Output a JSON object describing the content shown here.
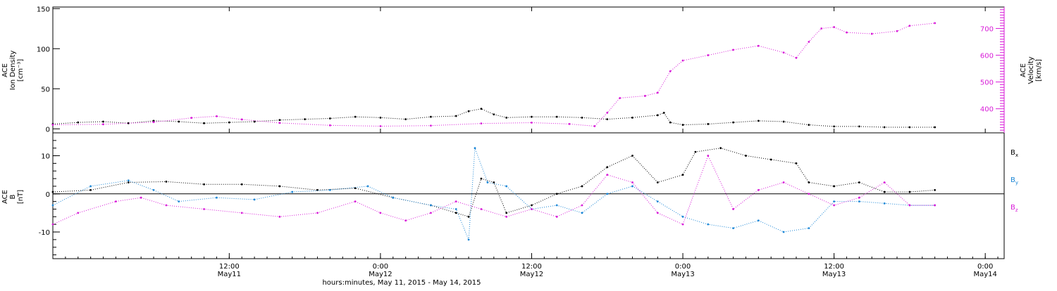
{
  "chart_data": [
    {
      "type": "scatter",
      "panel": "top",
      "xlabel": "hours:minutes, May 11, 2015 - May 14, 2015",
      "x_ticks": [
        {
          "time": "2015-05-11T12:00",
          "line1": "12:00",
          "line2": "May11"
        },
        {
          "time": "2015-05-12T00:00",
          "line1": "0:00",
          "line2": "May12"
        },
        {
          "time": "2015-05-12T12:00",
          "line1": "12:00",
          "line2": "May12"
        },
        {
          "time": "2015-05-13T00:00",
          "line1": "0:00",
          "line2": "May13"
        },
        {
          "time": "2015-05-13T12:00",
          "line1": "12:00",
          "line2": "May13"
        },
        {
          "time": "2015-05-14T00:00",
          "line1": "0:00",
          "line2": "May14"
        }
      ],
      "xlim": [
        "2015-05-10T22:00",
        "2015-05-14T01:30"
      ],
      "y_left": {
        "label_lines": [
          "ACE",
          "Ion Density",
          "[cm⁻³]"
        ],
        "ylim": [
          -5,
          152
        ],
        "ticks": [
          0,
          50,
          100,
          150
        ]
      },
      "y_right": {
        "label_lines": [
          "ACE",
          "Velocity",
          "[km/s]"
        ],
        "ylim": [
          310,
          780
        ],
        "ticks": [
          400,
          500,
          600,
          700
        ],
        "color": "#d81bd8"
      },
      "series": [
        {
          "color": "#000000",
          "axis": "left",
          "points": [
            [
              "2015-05-10T22:00",
              6
            ],
            [
              "2015-05-11T00:00",
              8
            ],
            [
              "2015-05-11T02:00",
              9
            ],
            [
              "2015-05-11T04:00",
              7
            ],
            [
              "2015-05-11T06:00",
              10
            ],
            [
              "2015-05-11T08:00",
              9
            ],
            [
              "2015-05-11T10:00",
              7
            ],
            [
              "2015-05-11T12:00",
              8
            ],
            [
              "2015-05-11T14:00",
              9
            ],
            [
              "2015-05-11T16:00",
              11
            ],
            [
              "2015-05-11T18:00",
              12
            ],
            [
              "2015-05-11T20:00",
              13
            ],
            [
              "2015-05-11T22:00",
              15
            ],
            [
              "2015-05-12T00:00",
              14
            ],
            [
              "2015-05-12T02:00",
              12
            ],
            [
              "2015-05-12T04:00",
              15
            ],
            [
              "2015-05-12T06:00",
              16
            ],
            [
              "2015-05-12T07:00",
              22
            ],
            [
              "2015-05-12T08:00",
              25
            ],
            [
              "2015-05-12T09:00",
              18
            ],
            [
              "2015-05-12T10:00",
              14
            ],
            [
              "2015-05-12T12:00",
              15
            ],
            [
              "2015-05-12T14:00",
              15
            ],
            [
              "2015-05-12T16:00",
              14
            ],
            [
              "2015-05-12T18:00",
              12
            ],
            [
              "2015-05-12T20:00",
              14
            ],
            [
              "2015-05-12T22:00",
              17
            ],
            [
              "2015-05-12T22:30",
              20
            ],
            [
              "2015-05-12T23:00",
              8
            ],
            [
              "2015-05-13T00:00",
              5
            ],
            [
              "2015-05-13T02:00",
              6
            ],
            [
              "2015-05-13T04:00",
              8
            ],
            [
              "2015-05-13T06:00",
              10
            ],
            [
              "2015-05-13T08:00",
              9
            ],
            [
              "2015-05-13T10:00",
              5
            ],
            [
              "2015-05-13T12:00",
              3
            ],
            [
              "2015-05-13T14:00",
              3
            ],
            [
              "2015-05-13T16:00",
              2
            ],
            [
              "2015-05-13T18:00",
              2
            ],
            [
              "2015-05-13T20:00",
              2
            ]
          ]
        },
        {
          "color": "#d81bd8",
          "axis": "right",
          "points": [
            [
              "2015-05-10T22:00",
              340
            ],
            [
              "2015-05-11T02:00",
              342
            ],
            [
              "2015-05-11T06:00",
              350
            ],
            [
              "2015-05-11T09:00",
              366
            ],
            [
              "2015-05-11T11:00",
              372
            ],
            [
              "2015-05-11T13:00",
              360
            ],
            [
              "2015-05-11T16:00",
              347
            ],
            [
              "2015-05-11T20:00",
              338
            ],
            [
              "2015-05-12T00:00",
              335
            ],
            [
              "2015-05-12T04:00",
              337
            ],
            [
              "2015-05-12T08:00",
              345
            ],
            [
              "2015-05-12T12:00",
              348
            ],
            [
              "2015-05-12T15:00",
              343
            ],
            [
              "2015-05-12T17:00",
              335
            ],
            [
              "2015-05-12T18:00",
              385
            ],
            [
              "2015-05-12T19:00",
              440
            ],
            [
              "2015-05-12T21:00",
              448
            ],
            [
              "2015-05-12T22:00",
              460
            ],
            [
              "2015-05-12T23:00",
              540
            ],
            [
              "2015-05-13T00:00",
              580
            ],
            [
              "2015-05-13T02:00",
              600
            ],
            [
              "2015-05-13T04:00",
              620
            ],
            [
              "2015-05-13T06:00",
              635
            ],
            [
              "2015-05-13T08:00",
              610
            ],
            [
              "2015-05-13T09:00",
              590
            ],
            [
              "2015-05-13T10:00",
              650
            ],
            [
              "2015-05-13T11:00",
              700
            ],
            [
              "2015-05-13T12:00",
              705
            ],
            [
              "2015-05-13T13:00",
              685
            ],
            [
              "2015-05-13T15:00",
              680
            ],
            [
              "2015-05-13T17:00",
              690
            ],
            [
              "2015-05-13T18:00",
              710
            ],
            [
              "2015-05-13T20:00",
              720
            ]
          ]
        }
      ]
    },
    {
      "type": "scatter",
      "panel": "bottom",
      "y": {
        "label_lines": [
          "ACE",
          "B",
          "[nT]"
        ],
        "ylim": [
          -17,
          16
        ],
        "ticks": [
          -10,
          0,
          10
        ]
      },
      "legend": [
        {
          "text": "B",
          "sub": "x",
          "color": "#000000"
        },
        {
          "text": "B",
          "sub": "y",
          "color": "#1a86d6"
        },
        {
          "text": "B",
          "sub": "z",
          "color": "#d81bd8"
        }
      ],
      "series": [
        {
          "color": "#000000",
          "points": [
            [
              "2015-05-10T22:00",
              0.5
            ],
            [
              "2015-05-11T01:00",
              1.0
            ],
            [
              "2015-05-11T04:00",
              3.0
            ],
            [
              "2015-05-11T07:00",
              3.2
            ],
            [
              "2015-05-11T10:00",
              2.5
            ],
            [
              "2015-05-11T13:00",
              2.5
            ],
            [
              "2015-05-11T16:00",
              2.0
            ],
            [
              "2015-05-11T19:00",
              1.0
            ],
            [
              "2015-05-11T22:00",
              1.5
            ],
            [
              "2015-05-12T01:00",
              -1.0
            ],
            [
              "2015-05-12T04:00",
              -3.0
            ],
            [
              "2015-05-12T06:00",
              -5.0
            ],
            [
              "2015-05-12T07:00",
              -6.0
            ],
            [
              "2015-05-12T08:00",
              4.0
            ],
            [
              "2015-05-12T09:00",
              3.0
            ],
            [
              "2015-05-12T10:00",
              -5.0
            ],
            [
              "2015-05-12T12:00",
              -3.0
            ],
            [
              "2015-05-12T14:00",
              0.0
            ],
            [
              "2015-05-12T16:00",
              2.0
            ],
            [
              "2015-05-12T18:00",
              7.0
            ],
            [
              "2015-05-12T20:00",
              10.0
            ],
            [
              "2015-05-12T22:00",
              3.0
            ],
            [
              "2015-05-13T00:00",
              5.0
            ],
            [
              "2015-05-13T01:00",
              11.0
            ],
            [
              "2015-05-13T03:00",
              12.0
            ],
            [
              "2015-05-13T05:00",
              10.0
            ],
            [
              "2015-05-13T07:00",
              9.0
            ],
            [
              "2015-05-13T09:00",
              8.0
            ],
            [
              "2015-05-13T10:00",
              3.0
            ],
            [
              "2015-05-13T12:00",
              2.0
            ],
            [
              "2015-05-13T14:00",
              3.0
            ],
            [
              "2015-05-13T16:00",
              0.5
            ],
            [
              "2015-05-13T18:00",
              0.5
            ],
            [
              "2015-05-13T20:00",
              1.0
            ]
          ]
        },
        {
          "color": "#1a86d6",
          "points": [
            [
              "2015-05-10T22:00",
              -3.0
            ],
            [
              "2015-05-11T01:00",
              2.0
            ],
            [
              "2015-05-11T04:00",
              3.5
            ],
            [
              "2015-05-11T06:00",
              1.0
            ],
            [
              "2015-05-11T08:00",
              -2.0
            ],
            [
              "2015-05-11T11:00",
              -1.0
            ],
            [
              "2015-05-11T14:00",
              -1.5
            ],
            [
              "2015-05-11T17:00",
              0.5
            ],
            [
              "2015-05-11T20:00",
              1.0
            ],
            [
              "2015-05-11T23:00",
              2.0
            ],
            [
              "2015-05-12T01:00",
              -1.0
            ],
            [
              "2015-05-12T04:00",
              -3.0
            ],
            [
              "2015-05-12T06:00",
              -4.0
            ],
            [
              "2015-05-12T07:00",
              -12.0
            ],
            [
              "2015-05-12T07:30",
              12.0
            ],
            [
              "2015-05-12T08:30",
              3.0
            ],
            [
              "2015-05-12T10:00",
              2.0
            ],
            [
              "2015-05-12T12:00",
              -4.0
            ],
            [
              "2015-05-12T14:00",
              -3.0
            ],
            [
              "2015-05-12T16:00",
              -5.0
            ],
            [
              "2015-05-12T18:00",
              0.0
            ],
            [
              "2015-05-12T20:00",
              2.0
            ],
            [
              "2015-05-12T22:00",
              -2.0
            ],
            [
              "2015-05-13T00:00",
              -6.0
            ],
            [
              "2015-05-13T02:00",
              -8.0
            ],
            [
              "2015-05-13T04:00",
              -9.0
            ],
            [
              "2015-05-13T06:00",
              -7.0
            ],
            [
              "2015-05-13T08:00",
              -10.0
            ],
            [
              "2015-05-13T10:00",
              -9.0
            ],
            [
              "2015-05-13T12:00",
              -2.0
            ],
            [
              "2015-05-13T14:00",
              -2.0
            ],
            [
              "2015-05-13T16:00",
              -2.5
            ],
            [
              "2015-05-13T18:00",
              -3.0
            ],
            [
              "2015-05-13T20:00",
              -3.0
            ]
          ]
        },
        {
          "color": "#d81bd8",
          "points": [
            [
              "2015-05-10T22:00",
              -8.0
            ],
            [
              "2015-05-11T00:00",
              -5.0
            ],
            [
              "2015-05-11T03:00",
              -2.0
            ],
            [
              "2015-05-11T05:00",
              -1.0
            ],
            [
              "2015-05-11T07:00",
              -3.0
            ],
            [
              "2015-05-11T10:00",
              -4.0
            ],
            [
              "2015-05-11T13:00",
              -5.0
            ],
            [
              "2015-05-11T16:00",
              -6.0
            ],
            [
              "2015-05-11T19:00",
              -5.0
            ],
            [
              "2015-05-11T22:00",
              -2.0
            ],
            [
              "2015-05-12T00:00",
              -5.0
            ],
            [
              "2015-05-12T02:00",
              -7.0
            ],
            [
              "2015-05-12T04:00",
              -5.0
            ],
            [
              "2015-05-12T06:00",
              -2.0
            ],
            [
              "2015-05-12T08:00",
              -4.0
            ],
            [
              "2015-05-12T10:00",
              -6.0
            ],
            [
              "2015-05-12T12:00",
              -4.0
            ],
            [
              "2015-05-12T14:00",
              -6.0
            ],
            [
              "2015-05-12T16:00",
              -3.0
            ],
            [
              "2015-05-12T18:00",
              5.0
            ],
            [
              "2015-05-12T20:00",
              3.0
            ],
            [
              "2015-05-12T22:00",
              -5.0
            ],
            [
              "2015-05-13T00:00",
              -8.0
            ],
            [
              "2015-05-13T02:00",
              10.0
            ],
            [
              "2015-05-13T04:00",
              -4.0
            ],
            [
              "2015-05-13T06:00",
              1.0
            ],
            [
              "2015-05-13T08:00",
              3.0
            ],
            [
              "2015-05-13T10:00",
              0.0
            ],
            [
              "2015-05-13T12:00",
              -3.0
            ],
            [
              "2015-05-13T14:00",
              -1.0
            ],
            [
              "2015-05-13T16:00",
              3.0
            ],
            [
              "2015-05-13T18:00",
              -3.0
            ],
            [
              "2015-05-13T20:00",
              -3.0
            ]
          ]
        }
      ]
    }
  ]
}
